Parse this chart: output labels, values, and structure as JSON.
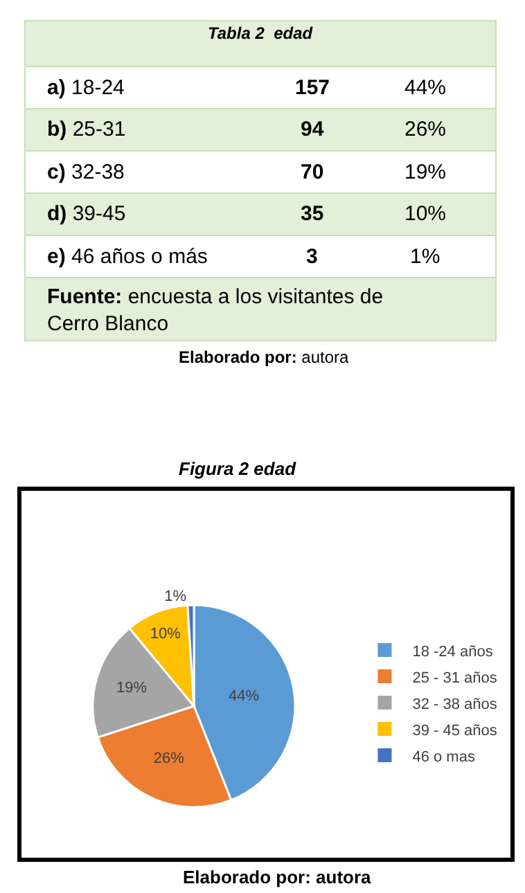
{
  "chart_data": [
    {
      "type": "other",
      "title": "Tabla 2  edad",
      "annotations": [
        "a) 18-24",
        "157",
        "44%",
        "b) 25-31",
        "94",
        "26%",
        "c) 32-38",
        "70",
        "19%",
        "d) 39-45",
        "35",
        "10%",
        "e) 46 años o más",
        "3",
        "1%",
        "Fuente: encuesta a los visitantes de Cerro Blanco",
        "Elaborado por: autora"
      ]
    },
    {
      "type": "pie",
      "title": "Figura 2 edad",
      "categories": [
        "18 -24 años",
        "25 - 31 años",
        "32 - 38 años",
        "39 - 45 años",
        "46 o mas"
      ],
      "values": [
        44,
        26,
        19,
        10,
        1
      ],
      "colors": [
        "#5b9bd5",
        "#ed7d31",
        "#a5a5a5",
        "#ffc000",
        "#4472c4"
      ],
      "value_labels": [
        "44%",
        "26%",
        "19%",
        "10%",
        "1%"
      ],
      "legend": "right",
      "annotations": [
        "Elaborado por: autora"
      ]
    }
  ]
}
